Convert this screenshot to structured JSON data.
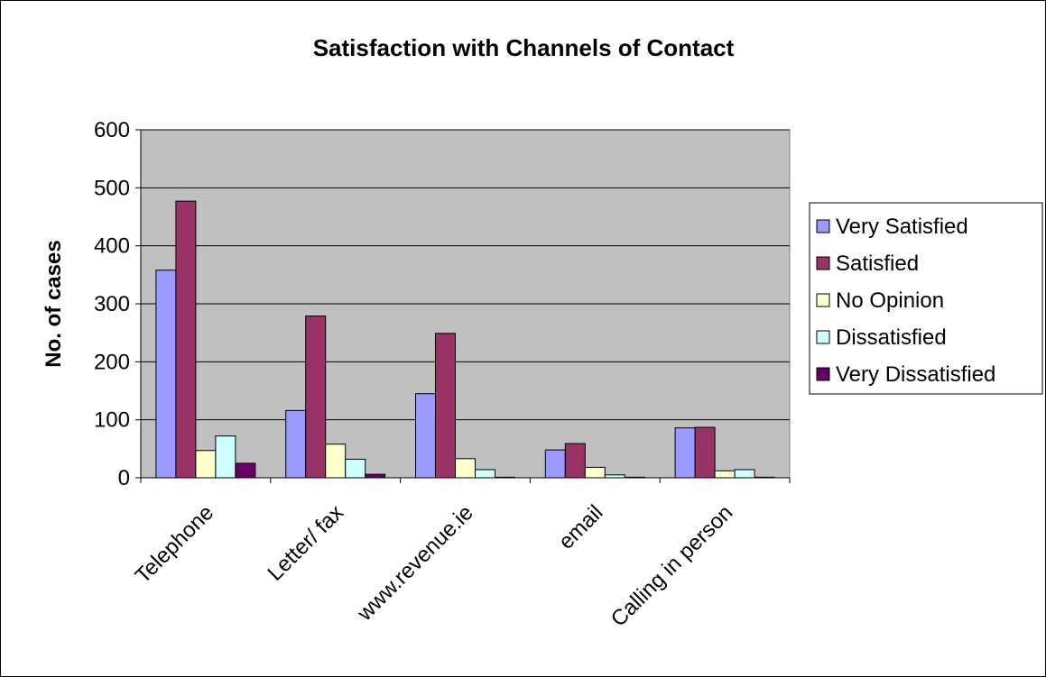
{
  "chart_data": {
    "type": "bar",
    "title": "Satisfaction with Channels of Contact",
    "xlabel": "",
    "ylabel": "No. of cases",
    "ylim": [
      0,
      600
    ],
    "yticks": [
      0,
      100,
      200,
      300,
      400,
      500,
      600
    ],
    "grid": true,
    "legend_position": "right",
    "plot_background": "#c0c0c0",
    "categories": [
      "Telephone",
      "Letter/ fax",
      "www.revenue.ie",
      "email",
      "Calling in person"
    ],
    "series": [
      {
        "name": "Very Satisfied",
        "color": "#9999ff",
        "values": [
          358,
          116,
          145,
          48,
          86
        ]
      },
      {
        "name": "Satisfied",
        "color": "#993366",
        "values": [
          477,
          279,
          249,
          59,
          87
        ]
      },
      {
        "name": "No Opinion",
        "color": "#ffffcc",
        "values": [
          47,
          58,
          33,
          18,
          12
        ]
      },
      {
        "name": "Dissatisfied",
        "color": "#ccffff",
        "values": [
          72,
          32,
          14,
          5,
          14
        ]
      },
      {
        "name": "Very Dissatisfied",
        "color": "#660066",
        "values": [
          25,
          6,
          1,
          1,
          1
        ]
      }
    ]
  }
}
